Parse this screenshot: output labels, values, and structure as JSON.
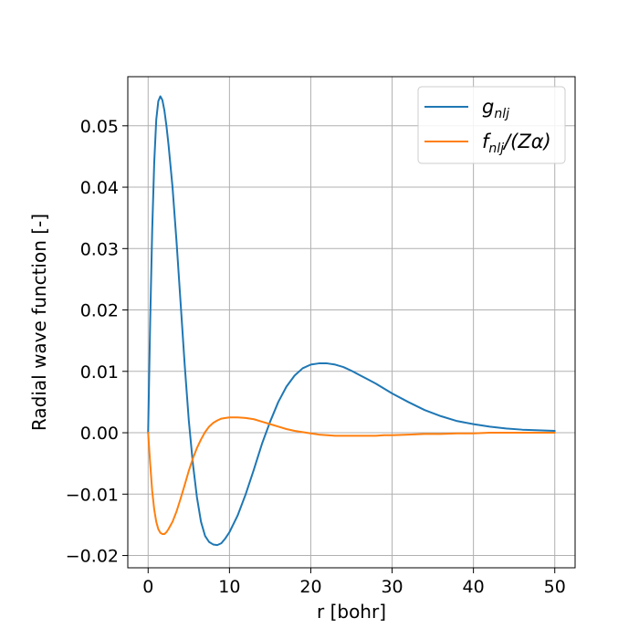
{
  "chart_data": {
    "type": "line",
    "title": "",
    "xlabel": "r [bohr]",
    "ylabel": "Radial wave function [-]",
    "xlim": [
      -2.5,
      52.5
    ],
    "ylim": [
      -0.022,
      0.058
    ],
    "xticks": [
      0,
      10,
      20,
      30,
      40,
      50
    ],
    "xtick_labels": [
      "0",
      "10",
      "20",
      "30",
      "40",
      "50"
    ],
    "yticks": [
      -0.02,
      -0.01,
      0.0,
      0.01,
      0.02,
      0.03,
      0.04,
      0.05
    ],
    "ytick_labels": [
      "−0.02",
      "−0.01",
      "0.00",
      "0.01",
      "0.02",
      "0.03",
      "0.04",
      "0.05"
    ],
    "grid": true,
    "legend_position": "top-right",
    "series": [
      {
        "name": "g_nlj",
        "color": "#1f77b4",
        "x": [
          0,
          0.25,
          0.5,
          0.75,
          1.0,
          1.25,
          1.5,
          1.75,
          2.0,
          2.25,
          2.5,
          3,
          3.5,
          4,
          4.5,
          5,
          5.5,
          6,
          6.5,
          7,
          7.5,
          8,
          8.5,
          9,
          9.5,
          10,
          11,
          12,
          13,
          14,
          15,
          16,
          17,
          18,
          19,
          20,
          21,
          22,
          23,
          24,
          25,
          26,
          27,
          28,
          29,
          30,
          32,
          34,
          36,
          38,
          40,
          42,
          44,
          46,
          48,
          50
        ],
        "y": [
          0.0,
          0.018,
          0.033,
          0.044,
          0.051,
          0.054,
          0.0548,
          0.0542,
          0.0525,
          0.05,
          0.047,
          0.04,
          0.031,
          0.021,
          0.011,
          0.002,
          -0.005,
          -0.0105,
          -0.0145,
          -0.0168,
          -0.0178,
          -0.0182,
          -0.0183,
          -0.018,
          -0.0172,
          -0.0162,
          -0.0135,
          -0.01,
          -0.006,
          -0.0018,
          0.0018,
          0.005,
          0.0075,
          0.0093,
          0.0105,
          0.0111,
          0.0113,
          0.0113,
          0.0111,
          0.0107,
          0.0101,
          0.0094,
          0.0087,
          0.008,
          0.0072,
          0.0064,
          0.005,
          0.0037,
          0.0027,
          0.0019,
          0.0014,
          0.001,
          0.0007,
          0.0005,
          0.0004,
          0.0003
        ]
      },
      {
        "name": "f_nlj/(Zα)",
        "color": "#ff7f0e",
        "x": [
          0,
          0.25,
          0.5,
          0.75,
          1.0,
          1.25,
          1.5,
          1.75,
          2.0,
          2.25,
          2.5,
          3,
          3.5,
          4,
          4.5,
          5,
          5.5,
          6,
          6.5,
          7,
          7.5,
          8,
          8.5,
          9,
          9.5,
          10,
          11,
          12,
          13,
          14,
          15,
          16,
          17,
          18,
          19,
          20,
          21,
          22,
          23,
          24,
          25,
          26,
          27,
          28,
          29,
          30,
          32,
          34,
          36,
          38,
          40,
          42,
          44,
          46,
          48,
          50
        ],
        "y": [
          0.0,
          -0.005,
          -0.0095,
          -0.0125,
          -0.0145,
          -0.0157,
          -0.0163,
          -0.0165,
          -0.0165,
          -0.0162,
          -0.0157,
          -0.0145,
          -0.0128,
          -0.0107,
          -0.0085,
          -0.0062,
          -0.0042,
          -0.0025,
          -0.0011,
          0.0001,
          0.001,
          0.0016,
          0.002,
          0.0023,
          0.0024,
          0.0025,
          0.0025,
          0.0024,
          0.0022,
          0.0018,
          0.0014,
          0.001,
          0.0006,
          0.0003,
          0.0001,
          -0.0001,
          -0.0003,
          -0.0004,
          -0.0005,
          -0.0005,
          -0.0005,
          -0.0005,
          -0.0005,
          -0.0005,
          -0.0004,
          -0.0004,
          -0.0003,
          -0.0002,
          -0.0002,
          -0.0001,
          -0.0001,
          0.0,
          0.0,
          0.0,
          0.0,
          0.0
        ]
      }
    ]
  }
}
